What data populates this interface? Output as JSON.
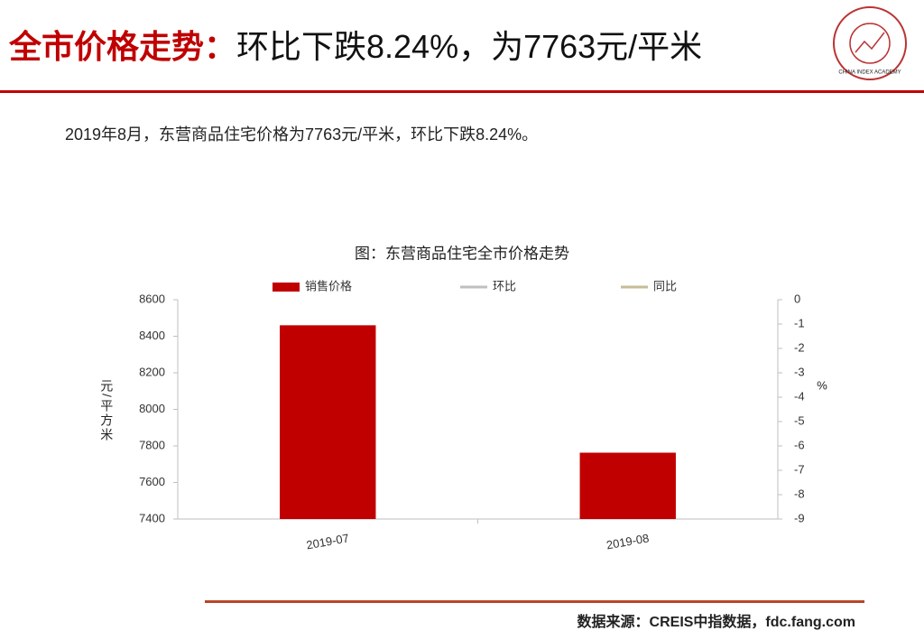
{
  "header": {
    "title_red": "全市价格走势：",
    "title_black": "环比下跌8.24%，为7763元/平米",
    "logo_text": "CHINA INDEX ACADEMY"
  },
  "summary": "2019年8月，东营商品住宅价格为7763元/平米，环比下跌8.24%。",
  "source": "数据来源：CREIS中指数据，fdc.fang.com",
  "chart_data": {
    "type": "bar",
    "title": "图：东营商品住宅全市价格走势",
    "categories": [
      "2019-07",
      "2019-08"
    ],
    "series": [
      {
        "name": "销售价格",
        "color": "#c00000",
        "values": [
          8460,
          7763
        ]
      },
      {
        "name": "环比",
        "color": "#bfbfbf",
        "values": [
          null,
          null
        ],
        "axis": "y2"
      },
      {
        "name": "同比",
        "color": "#c4bd97",
        "values": [
          null,
          null
        ],
        "axis": "y2"
      }
    ],
    "ylabel": "元/平方米",
    "y2label": "%",
    "ylim": [
      7400,
      8600
    ],
    "yticks": [
      7400,
      7600,
      7800,
      8000,
      8200,
      8400,
      8600
    ],
    "y2lim": [
      -9,
      0
    ],
    "y2ticks": [
      0,
      -1,
      -2,
      -3,
      -4,
      -5,
      -6,
      -7,
      -8,
      -9
    ],
    "grid": false
  }
}
